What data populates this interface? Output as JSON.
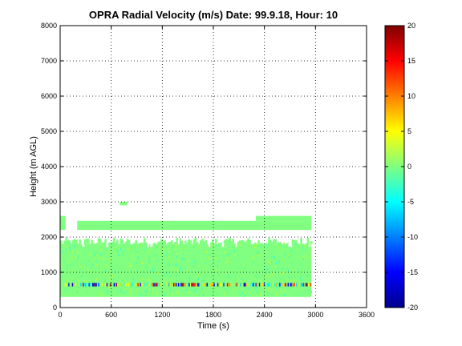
{
  "chart_data": {
    "type": "heatmap",
    "title": "OPRA Radial Velocity (m/s)  Date: 99.9.18, Hour: 10",
    "xlabel": "Time (s)",
    "ylabel": "Height (m AGL)",
    "xlim": [
      0,
      3600
    ],
    "ylim": [
      0,
      8000
    ],
    "x_ticks": [
      "0",
      "600",
      "1200",
      "1800",
      "2400",
      "3000",
      "3600"
    ],
    "y_ticks": [
      "0",
      "1000",
      "2000",
      "3000",
      "4000",
      "5000",
      "6000",
      "7000",
      "8000"
    ],
    "grid": true,
    "colorbar": {
      "colormap": "jet",
      "range": [
        -20,
        20
      ],
      "ticks": [
        "20",
        "15",
        "10",
        "5",
        "0",
        "-5",
        "-10",
        "-15",
        "-20"
      ]
    },
    "data_extent": {
      "time_start": 0,
      "time_end": 2950,
      "main_block_height": [
        300,
        1800
      ],
      "upper_band_height": [
        2200,
        2600
      ],
      "active_layer_height": [
        600,
        700
      ],
      "typical_velocity": 0
    }
  }
}
